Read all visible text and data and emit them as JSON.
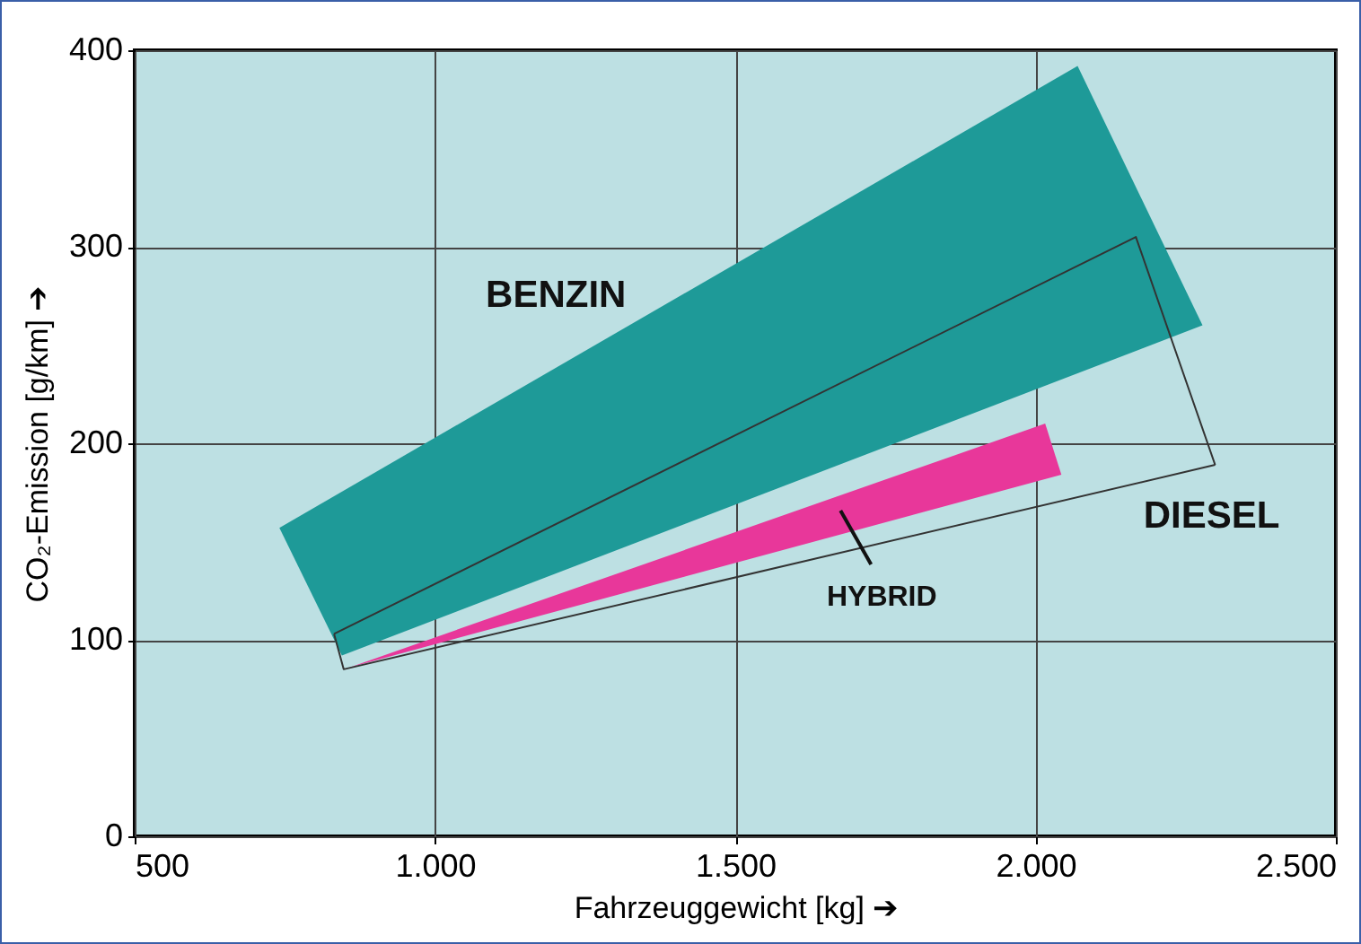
{
  "chart_data": {
    "type": "area",
    "xlabel": "Fahrzeuggewicht [kg] ➔",
    "ylabel": "CO₂-Emission [g/km] ➔",
    "xlim": [
      500,
      2500
    ],
    "ylim": [
      0,
      400
    ],
    "xticks": [
      500,
      {
        "value": 1000,
        "label": "1.000"
      },
      {
        "value": 1500,
        "label": "1.500"
      },
      {
        "value": 2000,
        "label": "2.000"
      },
      {
        "value": 2500,
        "label": "2.500"
      }
    ],
    "yticks": [
      0,
      100,
      200,
      300,
      400
    ],
    "grid": true,
    "series": [
      {
        "name": "BENZIN",
        "color": "#1e9a98",
        "x": [
          741,
          2070,
          2278,
          845,
          741
        ],
        "values": [
          157,
          392,
          260,
          92,
          157
        ]
      },
      {
        "name": "HYBRID",
        "color": "#e8379a",
        "x": [
          858,
          2016,
          2043,
          858
        ],
        "values": [
          86,
          210,
          184,
          86
        ]
      },
      {
        "name": "DIESEL",
        "type": "line",
        "color": "#333333",
        "x": [
          832,
          2167,
          2299
        ],
        "values": [
          103,
          305,
          189
        ]
      },
      {
        "type": "line",
        "color": "#333333",
        "x": [
          832,
          848,
          2299
        ],
        "values": [
          103,
          85,
          189
        ]
      }
    ]
  }
}
